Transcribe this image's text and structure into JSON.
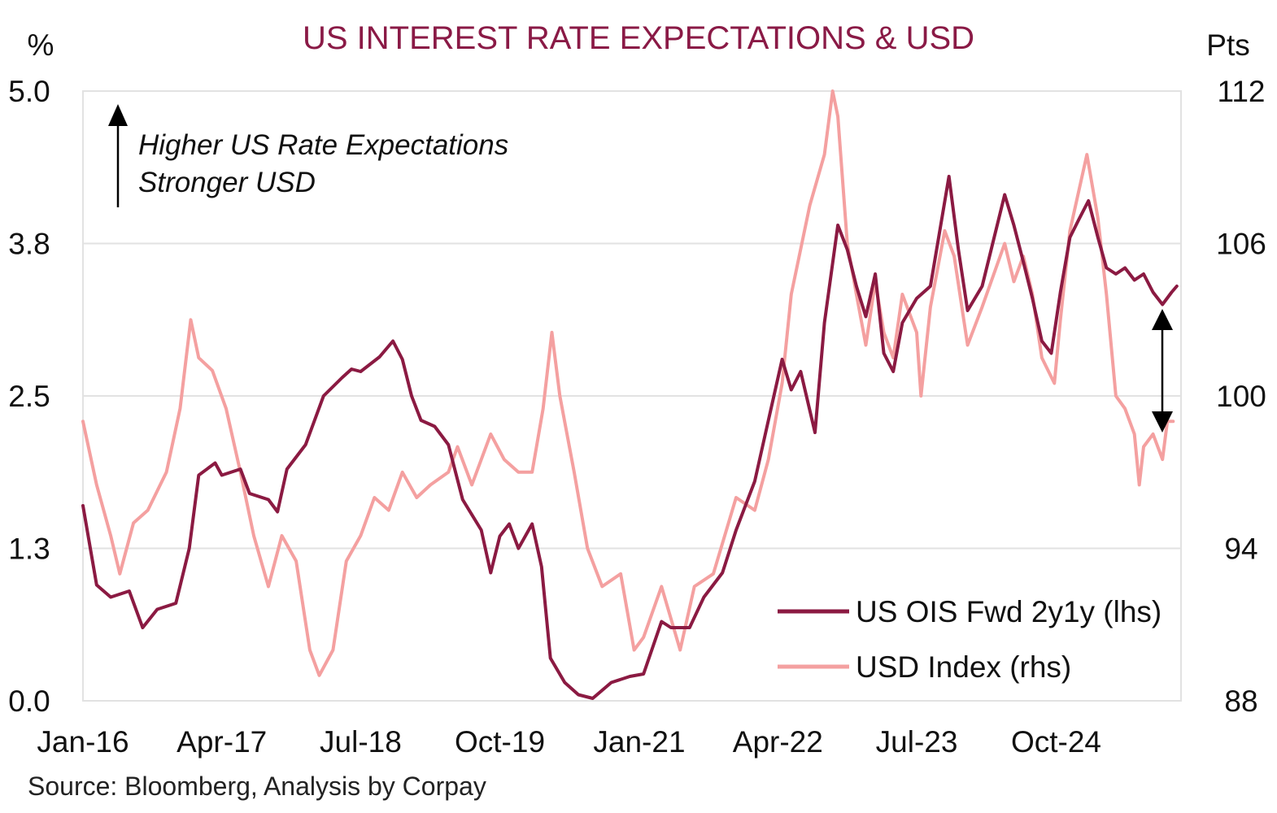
{
  "chart_data": {
    "type": "line",
    "title": "US INTEREST RATE EXPECTATIONS & USD",
    "y_left_unit": "%",
    "y_right_unit": "Pts",
    "y_left_ticks": [
      "5.0",
      "3.8",
      "2.5",
      "1.3",
      "0.0"
    ],
    "y_right_ticks": [
      "112",
      "106",
      "100",
      "94",
      "88"
    ],
    "y_left_lim": [
      0,
      5
    ],
    "y_right_lim": [
      88,
      112
    ],
    "x_ticks": [
      {
        "label": "Jan-16",
        "date": "2016-01-01"
      },
      {
        "label": "Apr-17",
        "date": "2017-04-01"
      },
      {
        "label": "Jul-18",
        "date": "2018-07-01"
      },
      {
        "label": "Oct-19",
        "date": "2019-10-01"
      },
      {
        "label": "Jan-21",
        "date": "2021-01-01"
      },
      {
        "label": "Apr-22",
        "date": "2022-04-01"
      },
      {
        "label": "Jul-23",
        "date": "2023-07-01"
      },
      {
        "label": "Oct-24",
        "date": "2024-10-01"
      }
    ],
    "x_range": [
      "2016-01-01",
      "2025-11-15"
    ],
    "grid": "horizontal",
    "legend_position": "bottom-right",
    "series": [
      {
        "name": "US OIS Fwd 2y1y (lhs)",
        "axis": "left",
        "color": "#8b1a42",
        "points": [
          [
            "2016-01-01",
            1.6
          ],
          [
            "2016-02-15",
            0.95
          ],
          [
            "2016-04-01",
            0.85
          ],
          [
            "2016-06-01",
            0.9
          ],
          [
            "2016-07-15",
            0.6
          ],
          [
            "2016-09-01",
            0.75
          ],
          [
            "2016-11-01",
            0.8
          ],
          [
            "2016-12-15",
            1.25
          ],
          [
            "2017-01-15",
            1.85
          ],
          [
            "2017-03-10",
            1.95
          ],
          [
            "2017-04-01",
            1.85
          ],
          [
            "2017-06-01",
            1.9
          ],
          [
            "2017-07-01",
            1.7
          ],
          [
            "2017-09-01",
            1.65
          ],
          [
            "2017-10-01",
            1.55
          ],
          [
            "2017-11-01",
            1.9
          ],
          [
            "2018-01-01",
            2.1
          ],
          [
            "2018-03-01",
            2.5
          ],
          [
            "2018-05-01",
            2.65
          ],
          [
            "2018-06-01",
            2.72
          ],
          [
            "2018-07-01",
            2.7
          ],
          [
            "2018-09-01",
            2.82
          ],
          [
            "2018-10-15",
            2.95
          ],
          [
            "2018-11-15",
            2.8
          ],
          [
            "2018-12-15",
            2.5
          ],
          [
            "2019-01-15",
            2.3
          ],
          [
            "2019-03-01",
            2.25
          ],
          [
            "2019-04-15",
            2.1
          ],
          [
            "2019-06-01",
            1.65
          ],
          [
            "2019-08-01",
            1.4
          ],
          [
            "2019-09-01",
            1.05
          ],
          [
            "2019-10-01",
            1.35
          ],
          [
            "2019-11-01",
            1.45
          ],
          [
            "2019-12-01",
            1.25
          ],
          [
            "2020-01-15",
            1.45
          ],
          [
            "2020-02-15",
            1.1
          ],
          [
            "2020-03-15",
            0.35
          ],
          [
            "2020-05-01",
            0.15
          ],
          [
            "2020-06-15",
            0.05
          ],
          [
            "2020-08-01",
            0.02
          ],
          [
            "2020-10-01",
            0.15
          ],
          [
            "2020-12-01",
            0.2
          ],
          [
            "2021-01-15",
            0.22
          ],
          [
            "2021-03-15",
            0.65
          ],
          [
            "2021-04-15",
            0.6
          ],
          [
            "2021-06-15",
            0.6
          ],
          [
            "2021-08-01",
            0.85
          ],
          [
            "2021-10-01",
            1.05
          ],
          [
            "2021-11-15",
            1.4
          ],
          [
            "2022-01-15",
            1.8
          ],
          [
            "2022-03-01",
            2.3
          ],
          [
            "2022-04-15",
            2.8
          ],
          [
            "2022-05-15",
            2.55
          ],
          [
            "2022-06-15",
            2.7
          ],
          [
            "2022-08-01",
            2.2
          ],
          [
            "2022-09-01",
            3.1
          ],
          [
            "2022-10-15",
            3.9
          ],
          [
            "2022-11-15",
            3.7
          ],
          [
            "2022-12-15",
            3.4
          ],
          [
            "2023-01-15",
            3.15
          ],
          [
            "2023-02-15",
            3.5
          ],
          [
            "2023-03-15",
            2.85
          ],
          [
            "2023-04-15",
            2.7
          ],
          [
            "2023-05-15",
            3.1
          ],
          [
            "2023-07-01",
            3.3
          ],
          [
            "2023-08-15",
            3.4
          ],
          [
            "2023-10-15",
            4.3
          ],
          [
            "2023-11-15",
            3.7
          ],
          [
            "2023-12-15",
            3.2
          ],
          [
            "2024-02-01",
            3.4
          ],
          [
            "2024-04-15",
            4.15
          ],
          [
            "2024-05-15",
            3.9
          ],
          [
            "2024-06-15",
            3.6
          ],
          [
            "2024-07-15",
            3.3
          ],
          [
            "2024-08-15",
            2.95
          ],
          [
            "2024-09-15",
            2.85
          ],
          [
            "2024-10-15",
            3.35
          ],
          [
            "2024-11-15",
            3.8
          ],
          [
            "2024-12-15",
            3.95
          ],
          [
            "2025-01-15",
            4.1
          ],
          [
            "2025-02-15",
            3.8
          ],
          [
            "2025-03-15",
            3.55
          ],
          [
            "2025-04-15",
            3.5
          ],
          [
            "2025-05-15",
            3.55
          ],
          [
            "2025-06-15",
            3.45
          ],
          [
            "2025-07-15",
            3.5
          ],
          [
            "2025-08-15",
            3.35
          ],
          [
            "2025-09-15",
            3.25
          ],
          [
            "2025-10-15",
            3.35
          ],
          [
            "2025-11-01",
            3.4
          ]
        ]
      },
      {
        "name": "USD Index (rhs)",
        "axis": "right",
        "color": "#f4a0a0",
        "points": [
          [
            "2016-01-01",
            99.0
          ],
          [
            "2016-02-15",
            96.5
          ],
          [
            "2016-04-01",
            94.5
          ],
          [
            "2016-05-01",
            93.0
          ],
          [
            "2016-06-15",
            95.0
          ],
          [
            "2016-08-01",
            95.5
          ],
          [
            "2016-10-01",
            97.0
          ],
          [
            "2016-11-15",
            99.5
          ],
          [
            "2016-12-20",
            103.0
          ],
          [
            "2017-01-15",
            101.5
          ],
          [
            "2017-03-01",
            101.0
          ],
          [
            "2017-04-15",
            99.5
          ],
          [
            "2017-06-01",
            97.0
          ],
          [
            "2017-07-15",
            94.5
          ],
          [
            "2017-09-01",
            92.5
          ],
          [
            "2017-10-15",
            94.5
          ],
          [
            "2017-12-01",
            93.5
          ],
          [
            "2018-01-15",
            90.0
          ],
          [
            "2018-02-15",
            89.0
          ],
          [
            "2018-04-01",
            90.0
          ],
          [
            "2018-05-15",
            93.5
          ],
          [
            "2018-07-01",
            94.5
          ],
          [
            "2018-08-15",
            96.0
          ],
          [
            "2018-10-01",
            95.5
          ],
          [
            "2018-11-15",
            97.0
          ],
          [
            "2019-01-01",
            96.0
          ],
          [
            "2019-02-15",
            96.5
          ],
          [
            "2019-04-15",
            97.0
          ],
          [
            "2019-05-15",
            98.0
          ],
          [
            "2019-07-01",
            96.5
          ],
          [
            "2019-09-01",
            98.5
          ],
          [
            "2019-10-15",
            97.5
          ],
          [
            "2019-12-01",
            97.0
          ],
          [
            "2020-01-15",
            97.0
          ],
          [
            "2020-02-20",
            99.5
          ],
          [
            "2020-03-20",
            102.5
          ],
          [
            "2020-04-15",
            100.0
          ],
          [
            "2020-06-01",
            97.0
          ],
          [
            "2020-07-15",
            94.0
          ],
          [
            "2020-09-01",
            92.5
          ],
          [
            "2020-11-01",
            93.0
          ],
          [
            "2020-12-15",
            90.0
          ],
          [
            "2021-01-15",
            90.5
          ],
          [
            "2021-03-15",
            92.5
          ],
          [
            "2021-05-15",
            90.0
          ],
          [
            "2021-07-01",
            92.5
          ],
          [
            "2021-09-01",
            93.0
          ],
          [
            "2021-11-15",
            96.0
          ],
          [
            "2022-01-15",
            95.5
          ],
          [
            "2022-03-01",
            97.5
          ],
          [
            "2022-04-15",
            100.5
          ],
          [
            "2022-05-15",
            104.0
          ],
          [
            "2022-07-15",
            107.5
          ],
          [
            "2022-09-01",
            109.5
          ],
          [
            "2022-09-28",
            112.0
          ],
          [
            "2022-10-15",
            111.0
          ],
          [
            "2022-11-15",
            106.0
          ],
          [
            "2022-12-15",
            104.0
          ],
          [
            "2023-01-15",
            102.0
          ],
          [
            "2023-02-15",
            104.5
          ],
          [
            "2023-03-15",
            102.5
          ],
          [
            "2023-04-15",
            101.5
          ],
          [
            "2023-05-15",
            104.0
          ],
          [
            "2023-07-01",
            102.5
          ],
          [
            "2023-07-15",
            100.0
          ],
          [
            "2023-08-15",
            103.5
          ],
          [
            "2023-10-01",
            106.5
          ],
          [
            "2023-11-01",
            105.5
          ],
          [
            "2023-12-15",
            102.0
          ],
          [
            "2024-02-01",
            103.5
          ],
          [
            "2024-04-15",
            106.0
          ],
          [
            "2024-05-15",
            104.5
          ],
          [
            "2024-06-15",
            105.5
          ],
          [
            "2024-07-15",
            104.0
          ],
          [
            "2024-08-15",
            101.5
          ],
          [
            "2024-09-25",
            100.5
          ],
          [
            "2024-10-15",
            103.0
          ],
          [
            "2024-11-15",
            106.5
          ],
          [
            "2025-01-10",
            109.5
          ],
          [
            "2025-02-15",
            107.0
          ],
          [
            "2025-03-15",
            104.0
          ],
          [
            "2025-04-15",
            100.0
          ],
          [
            "2025-05-15",
            99.5
          ],
          [
            "2025-06-15",
            98.5
          ],
          [
            "2025-07-01",
            96.5
          ],
          [
            "2025-07-15",
            98.0
          ],
          [
            "2025-08-15",
            98.5
          ],
          [
            "2025-09-15",
            97.5
          ],
          [
            "2025-10-01",
            99.0
          ],
          [
            "2025-10-20",
            99.0
          ]
        ]
      }
    ]
  },
  "annotation": {
    "line1": "Higher US Rate Expectations",
    "line2": "Stronger USD"
  },
  "source": "Source: Bloomberg, Analysis by Corpay"
}
